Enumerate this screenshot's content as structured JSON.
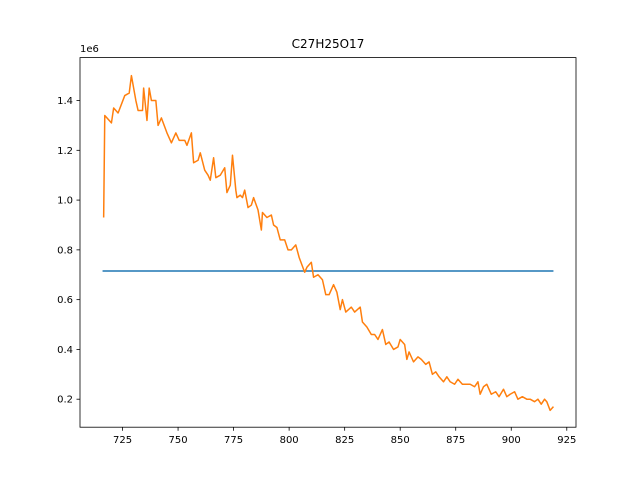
{
  "chart_data": {
    "type": "line",
    "title": "C27H25O17",
    "y_offset_label": "1e6",
    "xlim": [
      705.85,
      929.15
    ],
    "xticks": [
      725,
      750,
      775,
      800,
      825,
      850,
      875,
      900,
      925
    ],
    "ylim": [
      0.0875,
      1.5725
    ],
    "yticks": [
      0.2,
      0.4,
      0.6,
      {
        "value": 1,
        "label": "1.0"
      },
      0.8,
      1.2,
      1.4
    ],
    "grid": false,
    "series": [
      {
        "color": "#1f77b4",
        "x": [
          716,
          919
        ],
        "values": [
          0.715,
          0.715
        ]
      },
      {
        "color": "#ff7f0e",
        "x": [
          716.5,
          717,
          720,
          721,
          723,
          726,
          728,
          729,
          731,
          732,
          734,
          734.5,
          736,
          737,
          738,
          740,
          741,
          742.5,
          745,
          747,
          749,
          750.5,
          753,
          754,
          756,
          757,
          759,
          760,
          762,
          763.5,
          764.5,
          766,
          767,
          769,
          771,
          772,
          773.5,
          774.5,
          776,
          776.5,
          778,
          779,
          780,
          781.5,
          783,
          784,
          786,
          787.5,
          788,
          790,
          792,
          793,
          794.5,
          796,
          798,
          799.5,
          801,
          803,
          804.5,
          807,
          808,
          810,
          811,
          813,
          815,
          816.5,
          818,
          820,
          821.5,
          823,
          824,
          825.5,
          828,
          829.5,
          832,
          833,
          835,
          837,
          838.5,
          840,
          842,
          843.5,
          845,
          847,
          849,
          850,
          852,
          853,
          854,
          856,
          858,
          859.5,
          861.5,
          863,
          864.5,
          866,
          867.5,
          869.5,
          871,
          872.5,
          874.5,
          876,
          878,
          880,
          881.5,
          883.5,
          885,
          886,
          887.5,
          889,
          891,
          893,
          894.5,
          896.5,
          898,
          899.5,
          901.5,
          903,
          905,
          907,
          908.5,
          910.5,
          912,
          913.5,
          915,
          916,
          917.5,
          919
        ],
        "values": [
          0.93,
          1.34,
          1.31,
          1.37,
          1.35,
          1.42,
          1.43,
          1.5,
          1.4,
          1.36,
          1.36,
          1.45,
          1.32,
          1.45,
          1.4,
          1.4,
          1.3,
          1.33,
          1.27,
          1.23,
          1.27,
          1.24,
          1.24,
          1.22,
          1.27,
          1.15,
          1.16,
          1.19,
          1.12,
          1.1,
          1.08,
          1.17,
          1.09,
          1.1,
          1.13,
          1.03,
          1.06,
          1.18,
          1.04,
          1.01,
          1.02,
          1.01,
          1.04,
          0.97,
          0.98,
          1.01,
          0.96,
          0.88,
          0.95,
          0.93,
          0.94,
          0.9,
          0.89,
          0.84,
          0.84,
          0.8,
          0.8,
          0.82,
          0.77,
          0.71,
          0.73,
          0.75,
          0.69,
          0.7,
          0.68,
          0.62,
          0.62,
          0.66,
          0.63,
          0.56,
          0.6,
          0.55,
          0.57,
          0.55,
          0.57,
          0.51,
          0.49,
          0.46,
          0.46,
          0.44,
          0.48,
          0.42,
          0.43,
          0.4,
          0.41,
          0.44,
          0.42,
          0.36,
          0.39,
          0.35,
          0.37,
          0.36,
          0.34,
          0.35,
          0.3,
          0.31,
          0.29,
          0.27,
          0.29,
          0.27,
          0.26,
          0.28,
          0.26,
          0.26,
          0.26,
          0.25,
          0.27,
          0.22,
          0.25,
          0.26,
          0.22,
          0.23,
          0.21,
          0.24,
          0.21,
          0.22,
          0.23,
          0.2,
          0.21,
          0.2,
          0.2,
          0.19,
          0.2,
          0.18,
          0.2,
          0.19,
          0.155,
          0.17
        ]
      }
    ]
  }
}
